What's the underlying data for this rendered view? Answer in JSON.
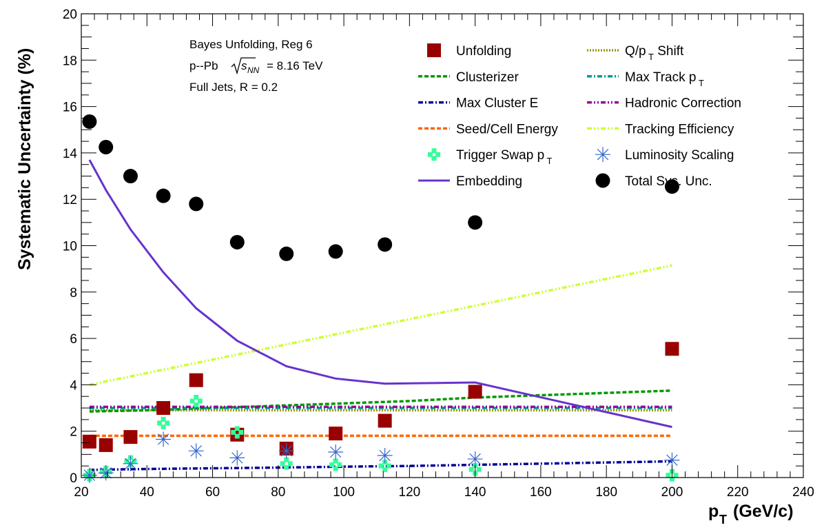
{
  "chart_data": {
    "type": "line",
    "xlabel": "p_T (GeV/c)",
    "ylabel": "Systematic Uncertainty (%)",
    "xlim": [
      20,
      240
    ],
    "ylim": [
      0,
      20
    ],
    "x_ticks": [
      "20",
      "40",
      "60",
      "80",
      "100",
      "120",
      "140",
      "160",
      "180",
      "200",
      "220",
      "240"
    ],
    "y_ticks": [
      "0",
      "2",
      "4",
      "6",
      "8",
      "10",
      "12",
      "14",
      "16",
      "18",
      "20"
    ],
    "grid": false,
    "legend_position": "top-right",
    "annotations": {
      "line1": "Bayes Unfolding, Reg 6",
      "line2_prefix": "p--Pb",
      "line2_sqrt_s": "s",
      "line2_sub": "NN",
      "line2_suffix": "= 8.16 TeV",
      "line3": "Full Jets, R = 0.2"
    },
    "series": [
      {
        "name": "Unfolding",
        "style": "square",
        "color": "#990000",
        "x": [
          22.5,
          27.5,
          35,
          45,
          55,
          67.5,
          82.5,
          97.5,
          112.5,
          140,
          200
        ],
        "y": [
          1.55,
          1.4,
          1.75,
          3.0,
          4.2,
          1.85,
          1.25,
          1.9,
          2.45,
          3.7,
          5.55
        ]
      },
      {
        "name": "Q/p_T Shift",
        "style": "dot",
        "color": "#999900",
        "x": [
          22.5,
          200
        ],
        "y": [
          2.9,
          2.9
        ]
      },
      {
        "name": "Clusterizer",
        "style": "dash",
        "color": "#009900",
        "x": [
          22.5,
          40,
          60,
          80,
          100,
          120,
          140,
          160,
          180,
          200
        ],
        "y": [
          2.85,
          2.9,
          3.0,
          3.1,
          3.2,
          3.3,
          3.45,
          3.55,
          3.65,
          3.75
        ]
      },
      {
        "name": "Max Track p_T",
        "style": "dashdot",
        "color": "#009999",
        "x": [
          22.5,
          200
        ],
        "y": [
          3.0,
          3.0
        ]
      },
      {
        "name": "Max Cluster E",
        "style": "dashdot",
        "color": "#000099",
        "x": [
          22.5,
          40,
          60,
          80,
          100,
          120,
          140,
          160,
          180,
          200
        ],
        "y": [
          0.33,
          0.37,
          0.4,
          0.43,
          0.47,
          0.5,
          0.55,
          0.6,
          0.65,
          0.7
        ]
      },
      {
        "name": "Hadronic Correction",
        "style": "dashdotdot",
        "color": "#990099",
        "x": [
          22.5,
          200
        ],
        "y": [
          3.05,
          3.05
        ]
      },
      {
        "name": "Seed/Cell Energy",
        "style": "dash",
        "color": "#ff6600",
        "x": [
          22.5,
          200
        ],
        "y": [
          1.8,
          1.8
        ]
      },
      {
        "name": "Tracking Efficiency",
        "style": "dashdotdot",
        "color": "#ccff33",
        "x": [
          22.5,
          200
        ],
        "y": [
          4.0,
          9.15
        ]
      },
      {
        "name": "Trigger Swap p_T",
        "style": "cross",
        "color": "#33ff99",
        "x": [
          22.5,
          27.5,
          35,
          45,
          55,
          67.5,
          82.5,
          97.5,
          112.5,
          140,
          200
        ],
        "y": [
          0.1,
          0.25,
          0.7,
          2.35,
          3.3,
          1.95,
          0.6,
          0.55,
          0.5,
          0.35,
          0.1
        ]
      },
      {
        "name": "Luminosity Scaling",
        "style": "asterisk",
        "color": "#3366cc",
        "x": [
          22.5,
          27.5,
          35,
          45,
          55,
          67.5,
          82.5,
          97.5,
          112.5,
          140,
          200
        ],
        "y": [
          0.1,
          0.2,
          0.6,
          1.65,
          1.15,
          0.85,
          1.15,
          1.1,
          0.95,
          0.8,
          0.75
        ]
      },
      {
        "name": "Embedding",
        "style": "solid",
        "color": "#6633cc",
        "x": [
          22.5,
          27.5,
          35,
          45,
          55,
          67.5,
          82.5,
          97.5,
          112.5,
          140,
          200
        ],
        "y": [
          13.7,
          12.4,
          10.7,
          8.85,
          7.3,
          5.9,
          4.8,
          4.27,
          4.05,
          4.1,
          2.18
        ]
      },
      {
        "name": "Total Sys. Unc.",
        "style": "circle",
        "color": "#000000",
        "x": [
          22.5,
          27.5,
          35,
          45,
          55,
          67.5,
          82.5,
          97.5,
          112.5,
          140,
          200
        ],
        "y": [
          15.35,
          14.25,
          13.0,
          12.15,
          11.8,
          10.15,
          9.65,
          9.75,
          10.05,
          11.0,
          12.55
        ]
      }
    ]
  }
}
